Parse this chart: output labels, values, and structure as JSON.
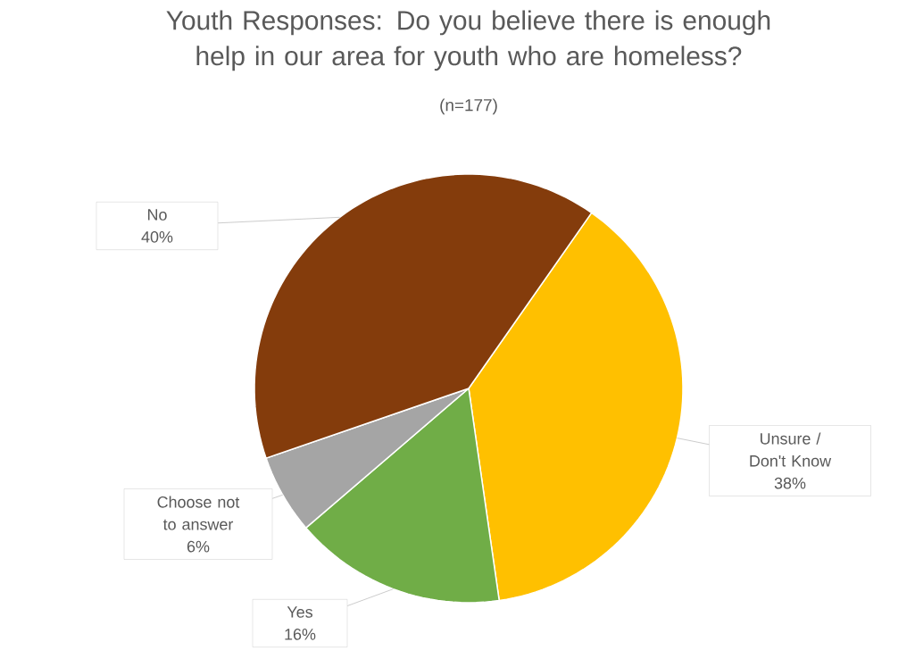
{
  "chart_data": {
    "type": "pie",
    "title": "Youth Responses: Do you believe there is enough help in our area for youth who are homeless?",
    "subtitle": "(n=177)",
    "categories": [
      "Unsure / Don't Know",
      "Yes",
      "Choose not to answer",
      "No"
    ],
    "values": [
      38,
      16,
      6,
      40
    ],
    "value_labels": [
      "38%",
      "16%",
      "6%",
      "40%"
    ],
    "colors": [
      "#ffc000",
      "#70ad47",
      "#a5a5a5",
      "#843c0c"
    ],
    "data_labels": true
  }
}
